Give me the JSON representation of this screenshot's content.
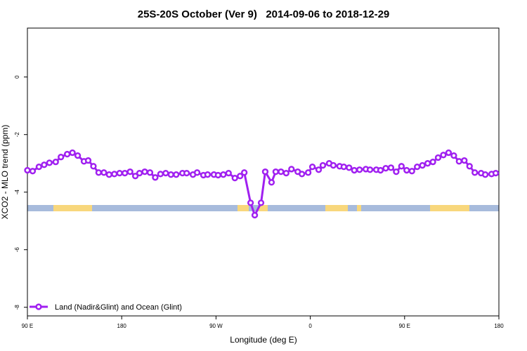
{
  "chart_data": {
    "type": "line",
    "title": "25S-20S October (Ver 9)   2014-09-06 to 2018-12-29",
    "xlabel": "Longitude (deg E)",
    "ylabel": "XCO2 - MLO trend (ppm)",
    "xlim": [
      90,
      540
    ],
    "ylim": [
      -8.3,
      1.7
    ],
    "xticks": [
      {
        "value": 90,
        "label": "90 E"
      },
      {
        "value": 180,
        "label": "180"
      },
      {
        "value": 270,
        "label": "90 W"
      },
      {
        "value": 360,
        "label": "0"
      },
      {
        "value": 450,
        "label": "90 E"
      },
      {
        "value": 540,
        "label": "180"
      }
    ],
    "yticks": [
      0,
      -2,
      -4,
      -6,
      -8
    ],
    "legend": "bottom-left",
    "series": [
      {
        "name": "Land (Nadir&Glint) and Ocean (Glint)",
        "color": "#a020f0",
        "x": [
          90,
          95,
          101,
          106,
          111,
          117,
          122,
          128,
          133,
          138,
          144,
          148,
          153,
          158,
          163,
          168,
          173,
          178,
          183,
          188,
          193,
          197,
          202,
          207,
          212,
          217,
          222,
          227,
          232,
          238,
          242,
          248,
          252,
          258,
          262,
          268,
          272,
          277,
          282,
          288,
          293,
          297,
          303,
          307,
          313,
          317,
          323,
          327,
          332,
          337,
          342,
          348,
          352,
          358,
          362,
          368,
          372,
          378,
          382,
          388,
          392,
          397,
          402,
          407,
          413,
          417,
          423,
          427,
          432,
          437,
          442,
          447,
          452,
          457,
          462,
          467,
          472,
          477,
          482,
          487,
          492,
          497,
          502,
          507,
          512,
          517,
          523,
          527,
          533,
          537
        ],
        "values": [
          -3.24,
          -3.27,
          -3.12,
          -3.05,
          -2.98,
          -2.95,
          -2.78,
          -2.68,
          -2.63,
          -2.73,
          -2.93,
          -2.9,
          -3.1,
          -3.32,
          -3.32,
          -3.39,
          -3.37,
          -3.34,
          -3.34,
          -3.29,
          -3.44,
          -3.34,
          -3.29,
          -3.32,
          -3.49,
          -3.37,
          -3.34,
          -3.39,
          -3.39,
          -3.34,
          -3.34,
          -3.39,
          -3.32,
          -3.41,
          -3.39,
          -3.39,
          -3.41,
          -3.39,
          -3.34,
          -3.51,
          -3.44,
          -3.32,
          -4.37,
          -4.8,
          -4.37,
          -3.29,
          -3.66,
          -3.29,
          -3.29,
          -3.34,
          -3.2,
          -3.29,
          -3.37,
          -3.32,
          -3.12,
          -3.22,
          -3.07,
          -3.0,
          -3.07,
          -3.1,
          -3.12,
          -3.15,
          -3.24,
          -3.22,
          -3.2,
          -3.22,
          -3.22,
          -3.24,
          -3.17,
          -3.15,
          -3.29,
          -3.1,
          -3.24,
          -3.27,
          -3.12,
          -3.07,
          -3.0,
          -2.95,
          -2.8,
          -2.71,
          -2.63,
          -2.73,
          -2.93,
          -2.9,
          -3.1,
          -3.32,
          -3.34,
          -3.39,
          -3.37,
          -3.34
        ]
      }
    ]
  }
}
